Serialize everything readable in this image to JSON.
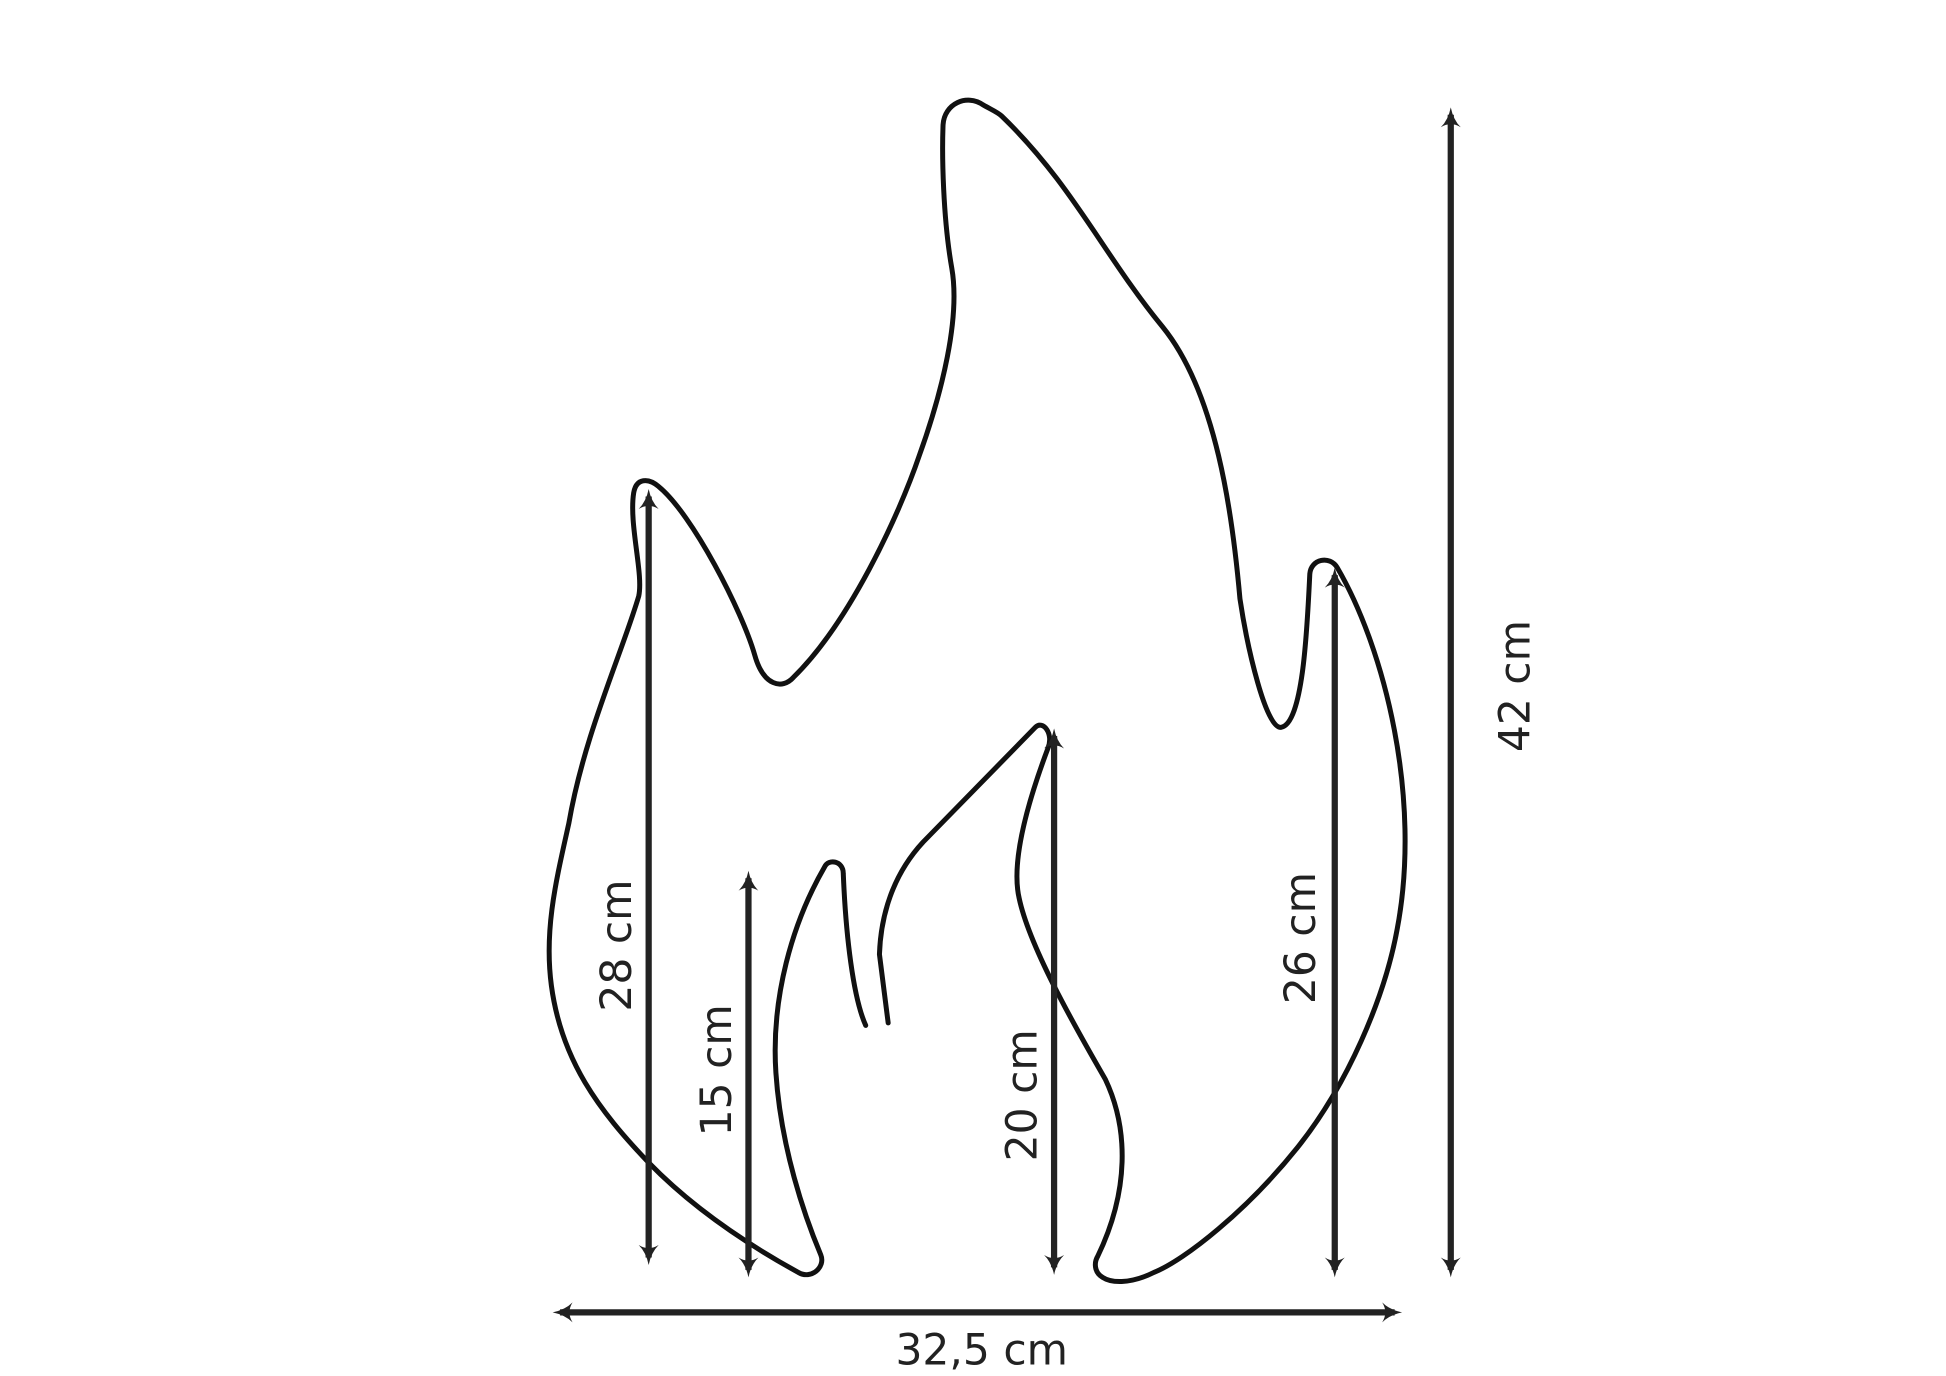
{
  "diagram": {
    "subject": "flame outline with dimensions",
    "stroke_color": "#111111",
    "dimensions": {
      "total_height": "42 cm",
      "total_width": "32,5 cm",
      "left_flame": "28 cm",
      "small_left_flame": "15 cm",
      "center_flame": "20 cm",
      "right_flame": "26 cm"
    }
  }
}
